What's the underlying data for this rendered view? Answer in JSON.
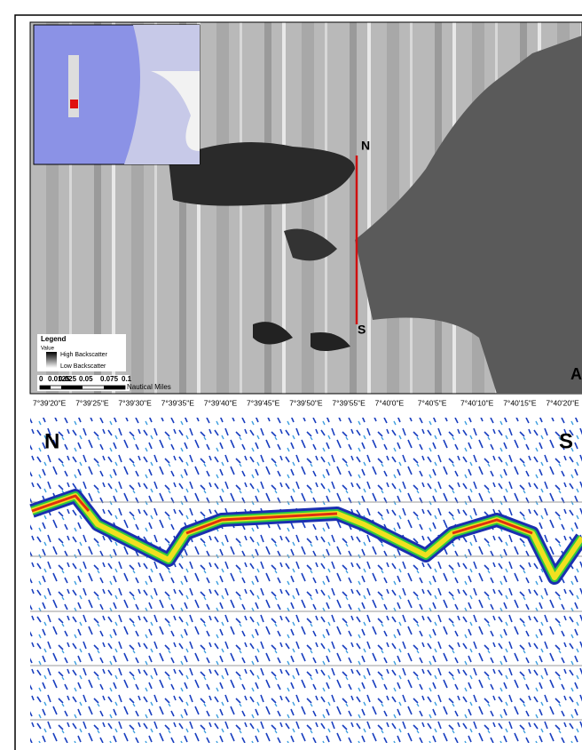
{
  "map": {
    "north_label": "N",
    "south_label": "S",
    "panel_letter": "A",
    "legend": {
      "title": "Legend",
      "field": "Value",
      "high": "High Backscatter",
      "low": "Low Backscatter"
    },
    "scale_bar": {
      "labels": [
        "0",
        "0.0125",
        "0.025",
        "0.05",
        "0.075",
        "0.1"
      ],
      "unit": "Nautical Miles"
    },
    "longitude_labels": [
      "7°39'20\"E",
      "7°39'25\"E",
      "7°39'30\"E",
      "7°39'35\"E",
      "7°39'40\"E",
      "7°39'45\"E",
      "7°39'50\"E",
      "7°39'55\"E",
      "7°40'0\"E",
      "7°40'5\"E",
      "7°40'10\"E",
      "7°40'15\"E",
      "7°40'20\"E"
    ]
  },
  "echogram": {
    "north_label": "N",
    "south_label": "S"
  }
}
